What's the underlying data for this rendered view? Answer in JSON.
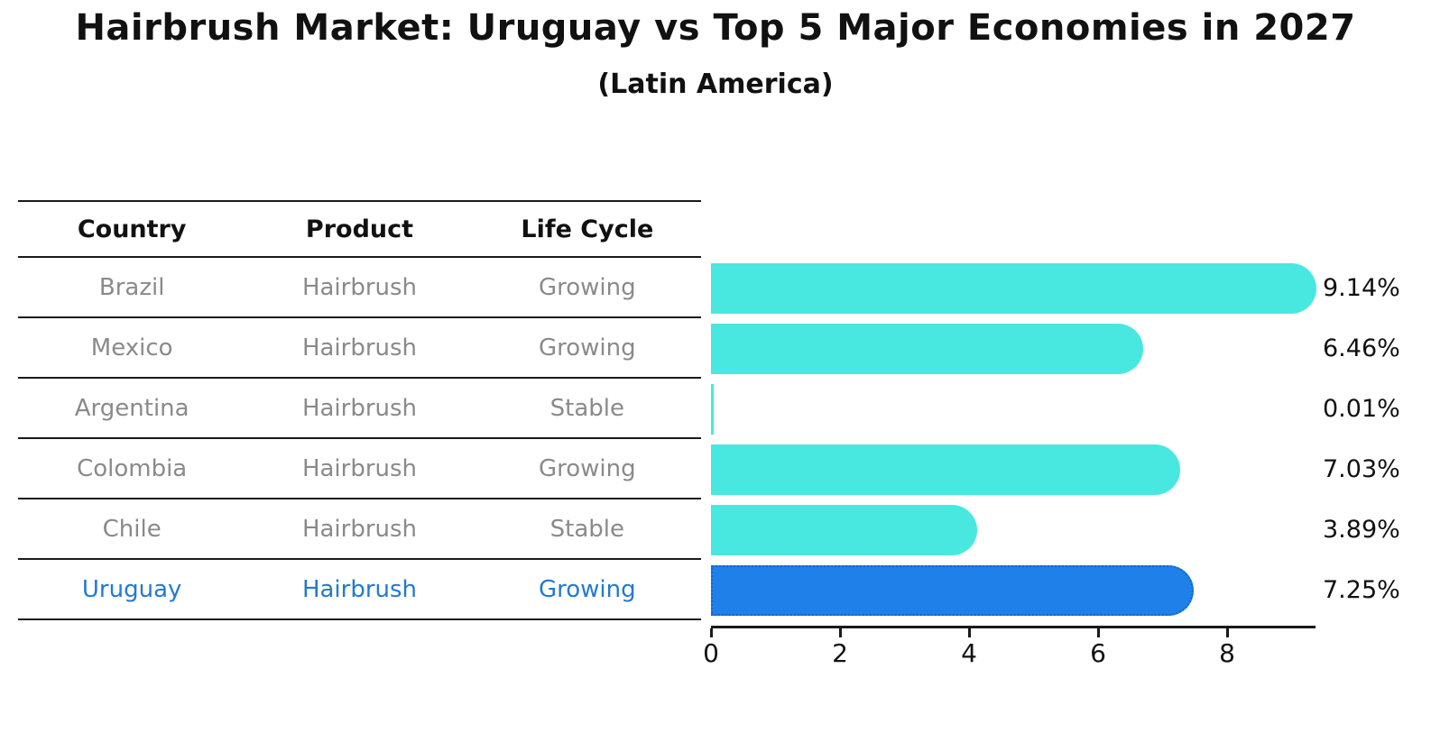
{
  "figure": {
    "title": "Hairbrush Market: Uruguay vs Top 5 Major Economies in 2027",
    "subtitle": "(Latin America)"
  },
  "table": {
    "columns": [
      "Country",
      "Product",
      "Life Cycle"
    ],
    "rows": [
      {
        "country": "Brazil",
        "product": "Hairbrush",
        "life_cycle": "Growing",
        "highlight": false
      },
      {
        "country": "Mexico",
        "product": "Hairbrush",
        "life_cycle": "Growing",
        "highlight": false
      },
      {
        "country": "Argentina",
        "product": "Hairbrush",
        "life_cycle": "Stable",
        "highlight": false
      },
      {
        "country": "Colombia",
        "product": "Hairbrush",
        "life_cycle": "Growing",
        "highlight": false
      },
      {
        "country": "Chile",
        "product": "Hairbrush",
        "life_cycle": "Stable",
        "highlight": false
      },
      {
        "country": "Uruguay",
        "product": "Hairbrush",
        "life_cycle": "Growing",
        "highlight": true
      }
    ]
  },
  "chart_data": {
    "type": "bar",
    "orientation": "horizontal",
    "title": "Hairbrush Market: Uruguay vs Top 5 Major Economies in 2027",
    "subtitle": "(Latin America)",
    "categories": [
      "Brazil",
      "Mexico",
      "Argentina",
      "Colombia",
      "Chile",
      "Uruguay"
    ],
    "values": [
      9.14,
      6.46,
      0.01,
      7.03,
      3.89,
      7.25
    ],
    "value_labels": [
      "9.14%",
      "6.46%",
      "0.01%",
      "7.03%",
      "3.89%",
      "7.25%"
    ],
    "x_ticks": [
      0,
      2,
      4,
      6,
      8
    ],
    "xlim": [
      0,
      9.5
    ],
    "grid": false,
    "legend": "none",
    "highlight_index": 5
  },
  "colors": {
    "bar": "#48e8e1",
    "highlight_bar": "#1e80e8",
    "highlight_border": "#1364d2",
    "highlight_text": "#2379d2",
    "table_text": "#8a8a8a",
    "header_text": "#111111",
    "axis": "#1a1a1a",
    "label_text": "#111111"
  }
}
